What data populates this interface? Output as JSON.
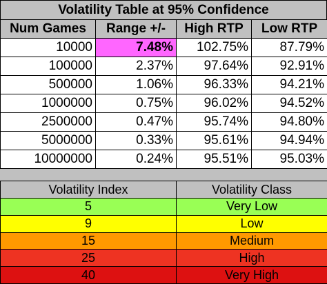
{
  "table": {
    "title": "Volatility Table at 95% Confidence",
    "header": [
      "Num Games",
      "Range +/-",
      "High RTP",
      "Low RTP"
    ],
    "rows": [
      [
        "10000",
        "7.48%",
        "102.75%",
        "87.79%"
      ],
      [
        "100000",
        "2.37%",
        "97.64%",
        "92.91%"
      ],
      [
        "500000",
        "1.06%",
        "96.33%",
        "94.21%"
      ],
      [
        "1000000",
        "0.75%",
        "96.02%",
        "94.52%"
      ],
      [
        "2500000",
        "0.47%",
        "95.74%",
        "94.80%"
      ],
      [
        "5000000",
        "0.33%",
        "95.61%",
        "94.94%"
      ],
      [
        "10000000",
        "0.24%",
        "95.51%",
        "95.03%"
      ]
    ]
  },
  "index_table": {
    "header": [
      "Volatility Index",
      "Volatility Class"
    ],
    "rows": [
      [
        "5",
        "Very Low"
      ],
      [
        "9",
        "Low"
      ],
      [
        "15",
        "Medium"
      ],
      [
        "25",
        "High"
      ],
      [
        "40",
        "Very High"
      ]
    ]
  }
}
